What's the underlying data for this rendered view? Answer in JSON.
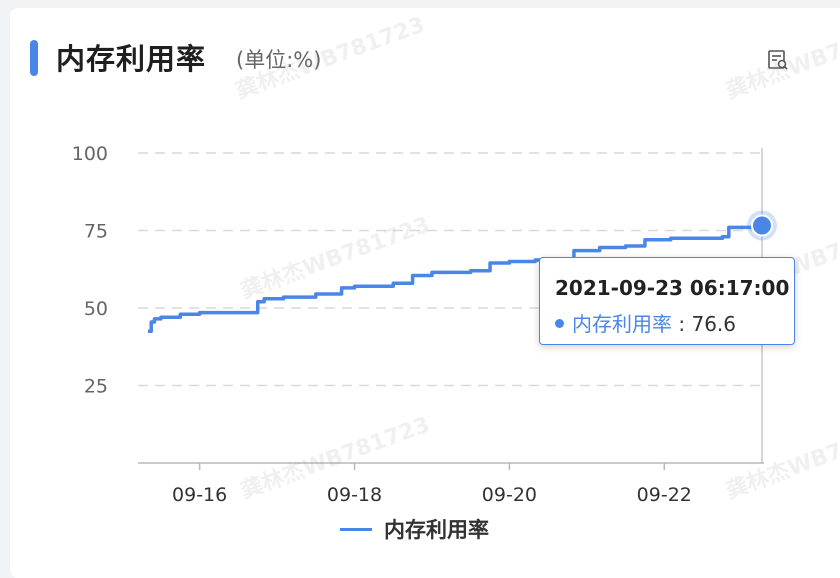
{
  "card": {
    "title": "内存利用率",
    "unit": "(单位:%)",
    "watermark": "龚林杰WB781723"
  },
  "menu": {
    "icon": "data-view-icon"
  },
  "chart_data": {
    "type": "line",
    "title": "内存利用率",
    "xlabel": "",
    "ylabel": "",
    "ylim": [
      0,
      100
    ],
    "yticks": [
      25,
      50,
      75,
      100
    ],
    "xticks": [
      "09-16",
      "09-18",
      "09-20",
      "09-22"
    ],
    "grid": true,
    "legend": "bottom-center",
    "color": "#4a86e8",
    "series": [
      {
        "name": "内存利用率",
        "x": [
          "09-15 08:00",
          "09-15 09:00",
          "09-15 10:00",
          "09-15 12:00",
          "09-15 18:00",
          "09-16 00:00",
          "09-16 18:00",
          "09-16 20:00",
          "09-17 02:00",
          "09-17 12:00",
          "09-17 20:00",
          "09-18 00:00",
          "09-18 12:00",
          "09-18 18:00",
          "09-19 00:00",
          "09-19 12:00",
          "09-19 18:00",
          "09-20 00:00",
          "09-20 08:00",
          "09-20 18:00",
          "09-20 20:00",
          "09-21 04:00",
          "09-21 12:00",
          "09-21 18:00",
          "09-22 02:00",
          "09-22 18:00",
          "09-22 20:00",
          "09-23 06:17"
        ],
        "values": [
          42.5,
          45.5,
          46.5,
          47,
          48,
          48.5,
          52,
          53,
          53.5,
          54.5,
          56.5,
          57,
          58,
          60.5,
          61.5,
          62,
          64.5,
          65,
          65.5,
          65.8,
          68.5,
          69.5,
          70,
          72,
          72.5,
          73,
          76,
          76.6
        ]
      }
    ],
    "x_start": "2021-09-15 08:00",
    "x_end": "2021-09-23 06:17",
    "tooltip": {
      "time": "2021-09-23 06:17:00",
      "series": "内存利用率",
      "separator": ":",
      "value": "76.6"
    }
  }
}
